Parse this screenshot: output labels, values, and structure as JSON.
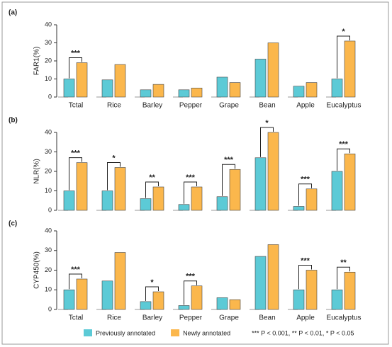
{
  "chart_data": [
    {
      "type": "bar",
      "panel_label": "(a)",
      "y_label": "FAR1(%)",
      "categories": [
        "Tctal",
        "Rice",
        "Barley",
        "Pepper",
        "Grape",
        "Bean",
        "Apple",
        "Eucalyptus"
      ],
      "series": [
        {
          "color": "#5ccad6",
          "values": [
            10,
            9.5,
            4,
            4,
            11,
            21,
            6,
            10
          ]
        },
        {
          "color": "#fbb74c",
          "values": [
            19,
            18,
            7,
            5,
            8,
            30,
            8,
            31
          ]
        }
      ],
      "annotations": [
        "***",
        null,
        null,
        null,
        null,
        null,
        null,
        "*"
      ],
      "ylim": [
        0,
        40
      ],
      "yticks": [
        0,
        10,
        20,
        30,
        40
      ]
    },
    {
      "type": "bar",
      "panel_label": "(b)",
      "y_label": "NLR(%)",
      "series": [
        {
          "color": "#5ccad6",
          "values": [
            10,
            10,
            6,
            3,
            7,
            27,
            2,
            20
          ]
        },
        {
          "color": "#fbb74c",
          "values": [
            24.5,
            22,
            12,
            12,
            21,
            40,
            11,
            29
          ]
        }
      ],
      "annotations": [
        "***",
        "*",
        "**",
        "***",
        "***",
        "*",
        "***",
        "***"
      ],
      "ylim": [
        0,
        40
      ],
      "yticks": [
        0,
        10,
        20,
        30,
        40
      ]
    },
    {
      "type": "bar",
      "panel_label": "(c)",
      "y_label": "CYP450(%)",
      "categories": [
        "Tctal",
        "Rice",
        "Barley",
        "Pepper",
        "Grape",
        "Bean",
        "Apple",
        "Eucalyptus"
      ],
      "series": [
        {
          "name": "Previously annotated",
          "color": "#5ccad6",
          "values": [
            10,
            14.5,
            4,
            2,
            6,
            27,
            10,
            10
          ]
        },
        {
          "name": "Newly annotated",
          "color": "#fbb74c",
          "values": [
            15.5,
            29,
            9,
            12,
            5,
            33,
            20,
            19
          ]
        }
      ],
      "annotations": [
        "***",
        null,
        "*",
        "***",
        null,
        null,
        "***",
        "**"
      ],
      "ylim": [
        0,
        40
      ],
      "yticks": [
        0,
        10,
        20,
        30,
        40
      ],
      "note": "*** P < 0.001, ** P < 0.01, * P < 0.05"
    }
  ]
}
